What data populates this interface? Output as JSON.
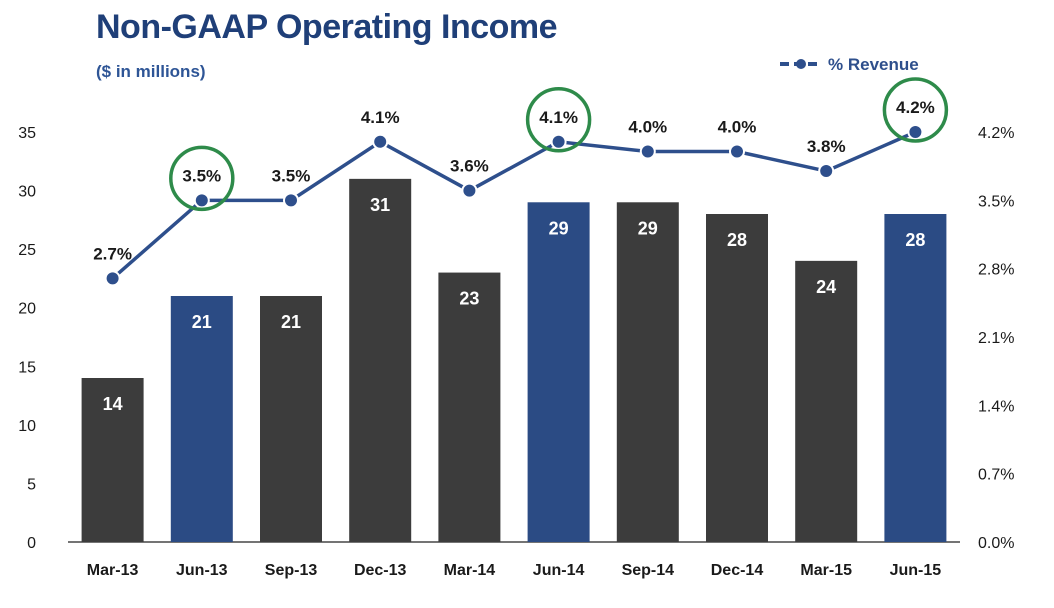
{
  "title": "Non-GAAP Operating Income",
  "subtitle": "($ in millions)",
  "legend": {
    "label": "% Revenue"
  },
  "colors": {
    "bar_default": "#3c3c3c",
    "bar_highlight": "#2b4b84",
    "line": "#2e4f8c",
    "circle": "#2e8b4a",
    "text": "#1a1a1a"
  },
  "chart_data": {
    "type": "bar",
    "categories": [
      "Mar-13",
      "Jun-13",
      "Sep-13",
      "Dec-13",
      "Mar-14",
      "Jun-14",
      "Sep-14",
      "Dec-14",
      "Mar-15",
      "Jun-15"
    ],
    "series": [
      {
        "values": [
          14,
          21,
          21,
          31,
          23,
          29,
          29,
          28,
          24,
          28
        ],
        "type": "bar",
        "highlighted": [
          "Jun-13",
          "Jun-14",
          "Jun-15"
        ]
      },
      {
        "name": "% Revenue",
        "type": "line",
        "axis": "right",
        "values": [
          2.7,
          3.5,
          3.5,
          4.1,
          3.6,
          4.1,
          4.0,
          4.0,
          3.8,
          4.2
        ],
        "labels": [
          "2.7%",
          "3.5%",
          "3.5%",
          "4.1%",
          "3.6%",
          "4.1%",
          "4.0%",
          "4.0%",
          "3.8%",
          "4.2%"
        ],
        "circled": [
          "Jun-13",
          "Jun-14",
          "Jun-15"
        ]
      }
    ],
    "bar_labels": [
      "14",
      "21",
      "21",
      "31",
      "23",
      "29",
      "29",
      "28",
      "24",
      "28"
    ],
    "ylim": [
      0,
      35
    ],
    "y_ticks": [
      "0",
      "5",
      "10",
      "15",
      "20",
      "25",
      "30",
      "35"
    ],
    "y2lim": [
      0,
      4.2
    ],
    "y2_ticks": [
      "0.0%",
      "0.7%",
      "1.4%",
      "2.1%",
      "2.8%",
      "3.5%",
      "4.2%"
    ],
    "legend_position": "top-right",
    "grid": false
  }
}
